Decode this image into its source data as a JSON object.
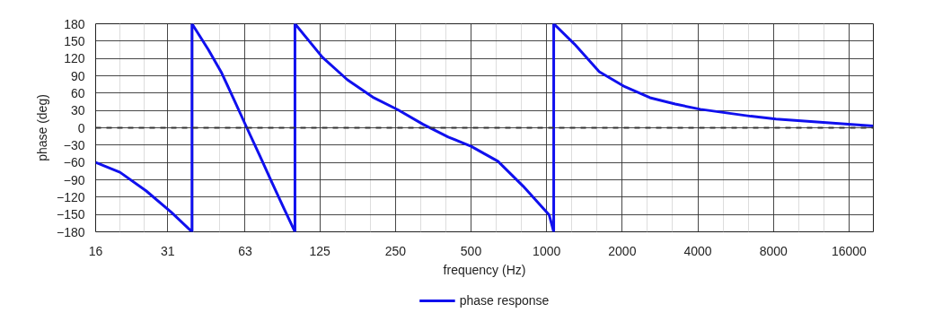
{
  "chart_data": {
    "type": "line",
    "xlabel": "frequency (Hz)",
    "ylabel": "phase (deg)",
    "x": [
      16,
      20,
      25.4,
      32,
      38.7,
      38.7,
      45,
      50.8,
      57,
      64,
      72,
      80.6,
      90,
      99.5,
      99.5,
      128,
      161,
      203,
      256,
      322,
      406,
      500,
      640,
      806,
      1024,
      1067,
      1067,
      1290,
      1620,
      2048,
      2580,
      3250,
      4096,
      6500,
      8192,
      16384,
      20000
    ],
    "series": [
      {
        "name": "phase response",
        "color": "#1010ee",
        "values": [
          -60,
          -77,
          -109,
          -146,
          -180,
          180,
          135,
          95,
          48,
          0,
          -48,
          -95,
          -140,
          -180,
          180,
          122,
          83,
          53,
          31,
          6,
          -16,
          -32,
          -58,
          -101,
          -151,
          -180,
          180,
          145,
          97,
          71,
          52,
          41,
          32,
          20,
          15,
          6,
          3
        ]
      }
    ],
    "log": "x",
    "xlim": [
      16,
      20000
    ],
    "ylim": [
      -180,
      180
    ],
    "xticks": [
      16,
      31,
      63,
      125,
      250,
      500,
      1000,
      2000,
      4000,
      8000,
      16000
    ],
    "yticks": [
      -180,
      -150,
      -120,
      -90,
      -60,
      -30,
      0,
      30,
      60,
      90,
      120,
      150,
      180
    ],
    "ref_lines": [
      {
        "axis": "y",
        "value": 0,
        "color": "#333333",
        "line_style": "dashed"
      }
    ],
    "grid": true,
    "legend": "bottom",
    "marker": "none",
    "line_style": "solid"
  }
}
